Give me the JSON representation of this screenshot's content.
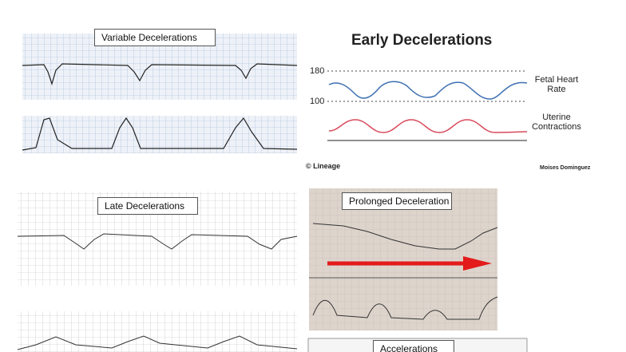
{
  "variable": {
    "label": "Variable Decelerations"
  },
  "early": {
    "title": "Early Decelerations",
    "scale": [
      "180",
      "100"
    ],
    "legend": [
      "Fetal Heart Rate",
      "Uterine Contractions"
    ],
    "credit": "© Lineage",
    "author": "Moises Dominguez"
  },
  "late": {
    "label": "Late Decelerations"
  },
  "prolonged": {
    "label": "Prolonged Deceleration"
  },
  "accelerations": {
    "label": "Accelerations"
  }
}
